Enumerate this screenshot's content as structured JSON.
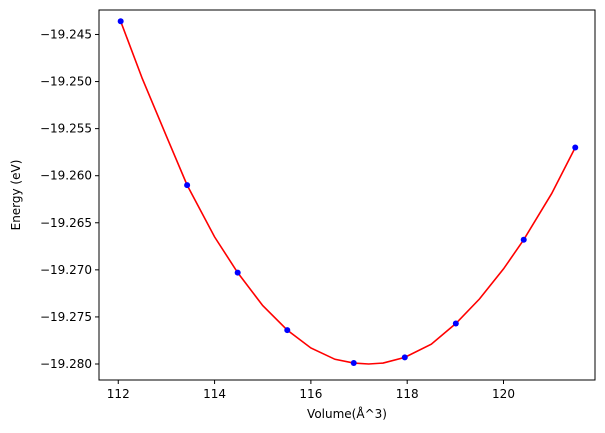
{
  "chart_data": {
    "type": "scatter",
    "title": "",
    "xlabel": "Volume(Å^3)",
    "ylabel": "Energy (eV)",
    "xlim": [
      111.6,
      121.9
    ],
    "ylim": [
      -19.2817,
      -19.2424
    ],
    "xticks": [
      112,
      114,
      116,
      118,
      120
    ],
    "yticks": [
      -19.245,
      -19.25,
      -19.255,
      -19.26,
      -19.265,
      -19.27,
      -19.275,
      -19.28
    ],
    "ytick_labels": [
      "−19.245",
      "−19.250",
      "−19.255",
      "−19.260",
      "−19.265",
      "−19.270",
      "−19.275",
      "−19.280"
    ],
    "grid": false,
    "points": {
      "color": "#0000ff",
      "x": [
        112.05,
        113.43,
        114.48,
        115.51,
        116.89,
        117.95,
        119.01,
        120.42,
        121.49
      ],
      "y": [
        -19.2436,
        -19.261,
        -19.2703,
        -19.2764,
        -19.2799,
        -19.2793,
        -19.2757,
        -19.2668,
        -19.257
      ]
    },
    "fit": {
      "color": "#ff0000",
      "x": [
        112.05,
        112.5,
        113.0,
        113.43,
        114.0,
        114.48,
        115.0,
        115.51,
        116.0,
        116.5,
        116.89,
        117.2,
        117.5,
        117.95,
        118.5,
        119.01,
        119.5,
        120.0,
        120.42,
        121.0,
        121.49
      ],
      "y": [
        -19.2436,
        -19.2497,
        -19.2558,
        -19.261,
        -19.2665,
        -19.2703,
        -19.2738,
        -19.2764,
        -19.2783,
        -19.2795,
        -19.2799,
        -19.28,
        -19.2799,
        -19.2793,
        -19.2779,
        -19.2757,
        -19.2731,
        -19.2699,
        -19.2668,
        -19.2619,
        -19.257
      ]
    }
  }
}
